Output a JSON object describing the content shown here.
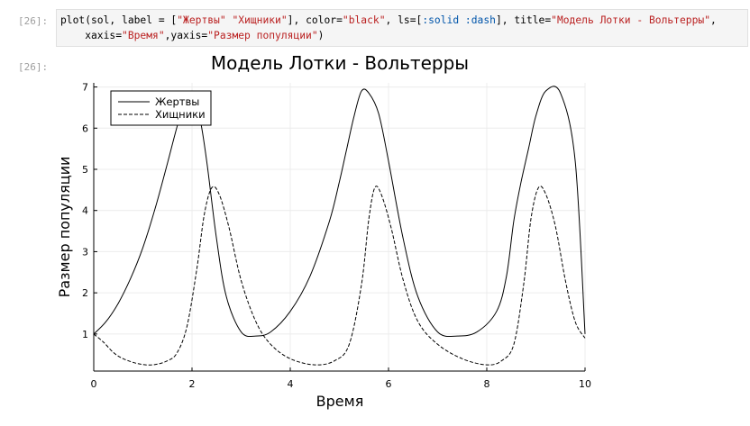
{
  "cell": {
    "in_prompt": "[26]:",
    "out_prompt": "[26]:",
    "code_lines": [
      "plot(sol, label = [\"Жертвы\" \"Хищники\"], color=\"black\", ls=[:solid :dash], title=\"Модель Лотки - Вольтерры\",",
      "    xaxis=\"Время\",yaxis=\"Размер популяции\")"
    ]
  },
  "chart_data": {
    "type": "line",
    "title": "Модель Лотки - Вольтерры",
    "xlabel": "Время",
    "ylabel": "Размер популяции",
    "xlim": [
      0,
      10
    ],
    "ylim": [
      0.1,
      7.1
    ],
    "xticks": [
      0,
      2,
      4,
      6,
      8,
      10
    ],
    "yticks": [
      1,
      2,
      3,
      4,
      5,
      6,
      7
    ],
    "grid": true,
    "legend_position": "top-left",
    "line_color": "#000000",
    "series": [
      {
        "name": "Жертвы",
        "style": "solid",
        "x": [
          0,
          0.25,
          0.5,
          0.75,
          1.0,
          1.25,
          1.5,
          1.7,
          1.85,
          2.0,
          2.15,
          2.3,
          2.5,
          2.7,
          3.0,
          3.3,
          3.6,
          4.0,
          4.4,
          4.8,
          5.0,
          5.15,
          5.3,
          5.45,
          5.6,
          5.8,
          6.0,
          6.3,
          6.6,
          7.0,
          7.4,
          7.8,
          8.2,
          8.4,
          8.55,
          8.7,
          8.85,
          9.0,
          9.2,
          9.5,
          9.8,
          10.0
        ],
        "y": [
          1.0,
          1.3,
          1.75,
          2.35,
          3.1,
          4.05,
          5.15,
          6.05,
          6.6,
          6.75,
          6.3,
          5.2,
          3.3,
          1.9,
          1.05,
          0.95,
          1.05,
          1.55,
          2.4,
          3.75,
          4.7,
          5.5,
          6.3,
          6.9,
          6.85,
          6.35,
          5.2,
          3.3,
          1.9,
          1.05,
          0.95,
          1.05,
          1.55,
          2.4,
          3.75,
          4.7,
          5.5,
          6.3,
          6.9,
          6.85,
          5.2,
          1.0
        ]
      },
      {
        "name": "Хищники",
        "style": "dash",
        "x": [
          0,
          0.2,
          0.4,
          0.6,
          0.9,
          1.2,
          1.5,
          1.7,
          1.9,
          2.1,
          2.25,
          2.4,
          2.55,
          2.75,
          3.0,
          3.3,
          3.6,
          4.0,
          4.5,
          4.9,
          5.2,
          5.45,
          5.6,
          5.72,
          5.85,
          6.05,
          6.3,
          6.6,
          7.0,
          7.5,
          8.0,
          8.3,
          8.55,
          8.75,
          8.9,
          9.05,
          9.2,
          9.4,
          9.6,
          9.8,
          10.0
        ],
        "y": [
          1.0,
          0.8,
          0.55,
          0.4,
          0.28,
          0.25,
          0.35,
          0.55,
          1.2,
          2.6,
          3.9,
          4.55,
          4.4,
          3.6,
          2.3,
          1.3,
          0.75,
          0.4,
          0.25,
          0.35,
          0.75,
          2.2,
          3.8,
          4.55,
          4.4,
          3.6,
          2.3,
          1.3,
          0.75,
          0.4,
          0.25,
          0.35,
          0.75,
          2.2,
          3.8,
          4.55,
          4.4,
          3.6,
          2.3,
          1.3,
          0.9
        ]
      }
    ]
  }
}
